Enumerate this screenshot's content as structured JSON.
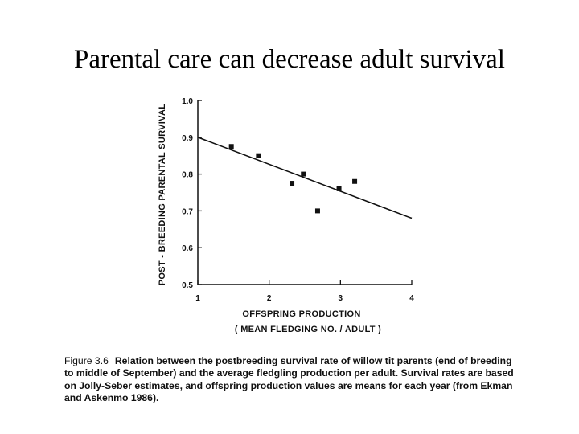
{
  "slide": {
    "title": "Parental care can decrease adult survival"
  },
  "caption": {
    "figure_number": "Figure 3.6",
    "text": "Relation between the postbreeding survival rate of willow tit parents (end of breeding to middle of September) and the average fledgling production per adult. Survival rates are based on Jolly-Seber estimates, and offspring production values are means for each year (from Ekman and Askenmo 1986)."
  },
  "chart_data": {
    "type": "scatter",
    "xlabel": "OFFSPRING  PRODUCTION",
    "xlabel2": "( MEAN  FLEDGING NO. / ADULT )",
    "ylabel": "POST - BREEDING  PARENTAL  SURVIVAL",
    "xlim": [
      1,
      4
    ],
    "ylim": [
      0.5,
      1.0
    ],
    "x_ticks": [
      "1",
      "2",
      "3",
      "4"
    ],
    "y_ticks": [
      "0.5",
      "0.6",
      "0.7",
      "0.8",
      "0.9",
      "1.0"
    ],
    "series": [
      {
        "x": [
          1.47,
          1.85,
          2.32,
          2.48,
          2.68,
          2.98,
          3.2
        ],
        "y": [
          0.875,
          0.85,
          0.775,
          0.8,
          0.7,
          0.76,
          0.78
        ]
      }
    ],
    "trendline": {
      "x": [
        1,
        4
      ],
      "y": [
        0.9,
        0.68
      ]
    },
    "grid": false,
    "legend": "none",
    "colors": {
      "ink": "#111111"
    }
  }
}
